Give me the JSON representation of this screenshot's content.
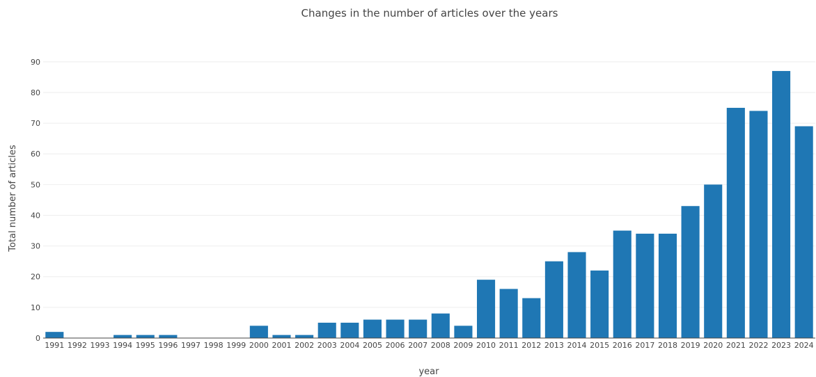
{
  "chart_data": {
    "type": "bar",
    "title": "Changes in the number of articles over the years",
    "xlabel": "year",
    "ylabel": "Total number of articles",
    "categories": [
      "1991",
      "1992",
      "1993",
      "1994",
      "1995",
      "1996",
      "1997",
      "1998",
      "1999",
      "2000",
      "2001",
      "2002",
      "2003",
      "2004",
      "2005",
      "2006",
      "2007",
      "2008",
      "2009",
      "2010",
      "2011",
      "2012",
      "2013",
      "2014",
      "2015",
      "2016",
      "2017",
      "2018",
      "2019",
      "2020",
      "2021",
      "2022",
      "2023",
      "2024"
    ],
    "values": [
      2,
      0,
      0,
      1,
      1,
      1,
      0,
      0,
      0,
      4,
      1,
      1,
      5,
      5,
      6,
      6,
      6,
      8,
      4,
      19,
      16,
      13,
      25,
      28,
      22,
      35,
      34,
      34,
      43,
      50,
      75,
      74,
      87,
      69
    ],
    "ylim": [
      0,
      92
    ],
    "yticks": [
      0,
      10,
      20,
      30,
      40,
      50,
      60,
      70,
      80,
      90
    ],
    "grid": true,
    "bar_color": "#1f77b4",
    "grid_color": "#eeeeee"
  }
}
